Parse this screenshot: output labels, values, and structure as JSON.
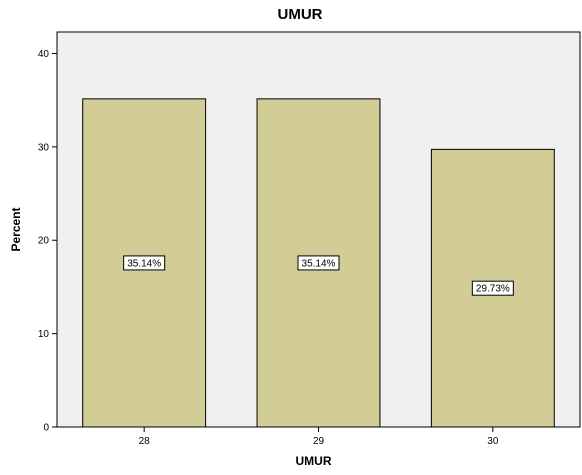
{
  "chart_data": {
    "type": "bar",
    "title": "UMUR",
    "xlabel": "UMUR",
    "ylabel": "Percent",
    "categories": [
      "28",
      "29",
      "30"
    ],
    "values": [
      35.14,
      35.14,
      29.73
    ],
    "data_labels": [
      "35.14%",
      "35.14%",
      "29.73%"
    ],
    "yticks": [
      0,
      10,
      20,
      30,
      40
    ],
    "ylim": [
      0,
      40
    ],
    "grid": false,
    "colors": {
      "bar_fill": "#d2cc96",
      "bar_stroke": "#000000",
      "plot_background": "#f0f0f0",
      "label_box_fill": "#ffffff"
    }
  }
}
